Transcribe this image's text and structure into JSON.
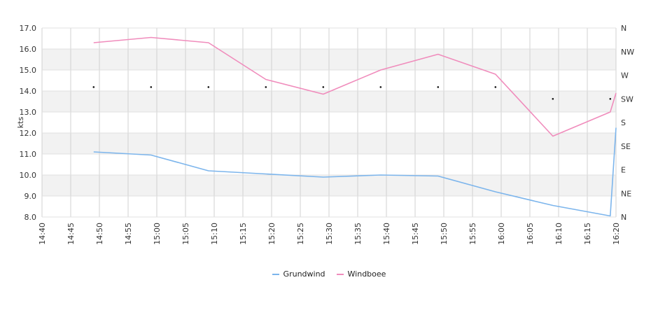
{
  "chart_data": {
    "type": "line",
    "ylabel": "kts",
    "ylim": [
      8.0,
      17.0
    ],
    "y_ticks": [
      "8.0",
      "9.0",
      "10.0",
      "11.0",
      "12.0",
      "13.0",
      "14.0",
      "15.0",
      "16.0",
      "17.0"
    ],
    "x_ticks": [
      "14:40",
      "14:45",
      "14:50",
      "14:55",
      "15:00",
      "15:05",
      "15:10",
      "15:15",
      "15:20",
      "15:25",
      "15:30",
      "15:35",
      "15:40",
      "15:45",
      "15:50",
      "15:55",
      "16:00",
      "16:05",
      "16:10",
      "16:15",
      "16:20"
    ],
    "xlim": [
      "14:40",
      "16:20"
    ],
    "y2_ticks": [
      "N",
      "NE",
      "E",
      "SE",
      "S",
      "SW",
      "W",
      "NW",
      "N"
    ],
    "grid": true,
    "legend_position": "bottom-center",
    "series": [
      {
        "name": "Grundwind",
        "color": "#7cb5ec",
        "points": [
          {
            "x": "14:49",
            "y": 11.1
          },
          {
            "x": "14:59",
            "y": 10.95
          },
          {
            "x": "15:09",
            "y": 10.2
          },
          {
            "x": "15:19",
            "y": 10.05
          },
          {
            "x": "15:29",
            "y": 9.9
          },
          {
            "x": "15:39",
            "y": 10.0
          },
          {
            "x": "15:49",
            "y": 9.95
          },
          {
            "x": "15:59",
            "y": 9.2
          },
          {
            "x": "16:09",
            "y": 8.55
          },
          {
            "x": "16:19",
            "y": 8.05
          },
          {
            "x": "16:20",
            "y": 12.25
          }
        ]
      },
      {
        "name": "Windboee",
        "color": "#f08cbc",
        "points": [
          {
            "x": "14:49",
            "y": 16.3
          },
          {
            "x": "14:59",
            "y": 16.55
          },
          {
            "x": "15:09",
            "y": 16.3
          },
          {
            "x": "15:19",
            "y": 14.55
          },
          {
            "x": "15:29",
            "y": 13.85
          },
          {
            "x": "15:39",
            "y": 15.0
          },
          {
            "x": "15:49",
            "y": 15.75
          },
          {
            "x": "15:59",
            "y": 14.8
          },
          {
            "x": "16:09",
            "y": 11.85
          },
          {
            "x": "16:19",
            "y": 13.0
          },
          {
            "x": "16:20",
            "y": 13.9
          }
        ]
      }
    ],
    "direction_markers": [
      {
        "x": "14:49",
        "dir": "WSW"
      },
      {
        "x": "14:59",
        "dir": "WSW"
      },
      {
        "x": "15:09",
        "dir": "WSW"
      },
      {
        "x": "15:19",
        "dir": "WSW"
      },
      {
        "x": "15:29",
        "dir": "WSW"
      },
      {
        "x": "15:39",
        "dir": "WSW"
      },
      {
        "x": "15:49",
        "dir": "WSW"
      },
      {
        "x": "15:59",
        "dir": "WSW"
      },
      {
        "x": "16:09",
        "dir": "SW"
      },
      {
        "x": "16:19",
        "dir": "SW"
      }
    ]
  }
}
